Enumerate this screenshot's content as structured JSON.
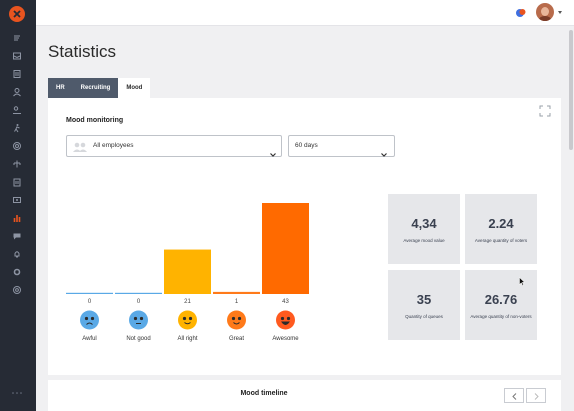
{
  "sidebar": {
    "icons": [
      "logo-icon",
      "stream-icon",
      "inbox-icon",
      "document-icon",
      "person-icon",
      "people-icon",
      "run-icon",
      "target-icon",
      "tree-icon",
      "building-icon",
      "money-icon",
      "chart-icon",
      "chat-icon",
      "bell-icon",
      "gear-icon",
      "lifebuoy-icon"
    ],
    "active": "chart-icon"
  },
  "page": {
    "title": "Statistics"
  },
  "tabs": [
    {
      "label": "HR"
    },
    {
      "label": "Recruiting"
    },
    {
      "label": "Mood"
    }
  ],
  "mood_card": {
    "title": "Mood monitoring",
    "employee_select": "All employees",
    "period_select": "60 days"
  },
  "chart_data": {
    "type": "bar",
    "categories": [
      "Awful",
      "Not good",
      "All right",
      "Great",
      "Awesome"
    ],
    "values": [
      0,
      0,
      21,
      1,
      43
    ],
    "value_labels": [
      "0",
      "0",
      "21",
      "1",
      "43"
    ],
    "colors": [
      "#5aa9e6",
      "#5aa9e6",
      "#ffb300",
      "#ff7a1a",
      "#ff6a00"
    ]
  },
  "stats": [
    {
      "value": "4,34",
      "caption": "Average mood value"
    },
    {
      "value": "2.24",
      "caption": "Average quantity of voters"
    },
    {
      "value": "35",
      "caption": "Quantity of queues"
    },
    {
      "value": "26.76",
      "caption": "Average quantity of non-voters"
    }
  ],
  "timeline": {
    "title": "Mood timeline"
  },
  "colors": {
    "sidebar": "#262b35",
    "accent": "#e8541f",
    "tab_bg": "#4f5a6b"
  }
}
